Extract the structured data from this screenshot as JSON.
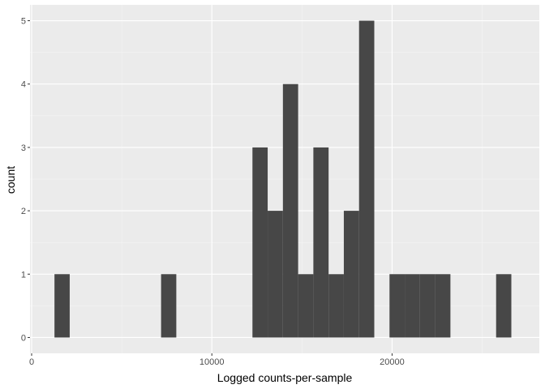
{
  "chart_data": {
    "type": "bar",
    "title": "",
    "xlabel": "Logged counts-per-sample",
    "ylabel": "count",
    "xlim": [
      -90,
      28170
    ],
    "ylim": [
      -0.25,
      5.25
    ],
    "x_ticks": [
      0,
      10000,
      20000
    ],
    "x_tick_labels": [
      "0",
      "10000",
      "20000"
    ],
    "y_ticks": [
      0,
      1,
      2,
      3,
      4,
      5
    ],
    "y_tick_labels": [
      "0",
      "1",
      "2",
      "3",
      "4",
      "5"
    ],
    "grid": true,
    "bin_width": 845,
    "bins": [
      {
        "x": 1690,
        "count": 1
      },
      {
        "x": 7605,
        "count": 1
      },
      {
        "x": 12675,
        "count": 3
      },
      {
        "x": 13520,
        "count": 2
      },
      {
        "x": 14365,
        "count": 4
      },
      {
        "x": 15210,
        "count": 1
      },
      {
        "x": 16055,
        "count": 3
      },
      {
        "x": 16900,
        "count": 1
      },
      {
        "x": 17745,
        "count": 2
      },
      {
        "x": 18590,
        "count": 5
      },
      {
        "x": 20280,
        "count": 1
      },
      {
        "x": 21125,
        "count": 1
      },
      {
        "x": 21970,
        "count": 1
      },
      {
        "x": 22815,
        "count": 1
      },
      {
        "x": 26195,
        "count": 1
      }
    ],
    "colors": {
      "bar": "#474747",
      "panel": "#ebebeb",
      "grid_major": "#ffffff",
      "grid_minor": "#f5f5f5",
      "tick": "#333333"
    }
  }
}
